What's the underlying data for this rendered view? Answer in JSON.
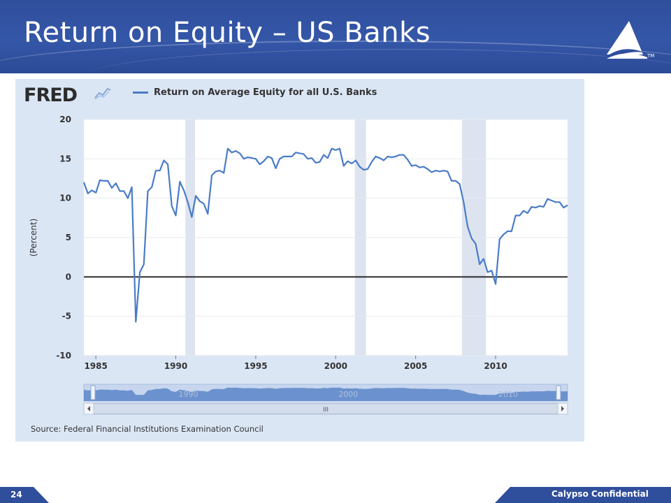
{
  "slide": {
    "title": "Return on Equity – US Banks",
    "page_number": "24",
    "footer_text": "Calypso Confidential",
    "logo_tm": "TM"
  },
  "colors": {
    "header_blue": "#2f4e9c",
    "series_line": "#4a7cc7",
    "recession_band": "#dde4ef",
    "plot_bg": "#ffffff",
    "panel_bg": "#dbe6f5"
  },
  "fred": {
    "logo_text": "FRED",
    "source": "Source: Federal Financial Institutions Examination Council",
    "navigator_labels": [
      "1990",
      "2000",
      "2010"
    ],
    "scroll_handle": "III"
  },
  "chart_data": {
    "type": "line",
    "title": "",
    "xlabel": "",
    "ylabel": "(Percent)",
    "xlim": [
      1984.25,
      2014.5
    ],
    "ylim": [
      -10,
      20
    ],
    "x_ticks": [
      1985,
      1990,
      1995,
      2000,
      2005,
      2010
    ],
    "y_ticks": [
      20,
      15,
      10,
      5,
      0,
      -5,
      -10
    ],
    "grid": true,
    "legend": "top",
    "zero_line": true,
    "recessions": [
      [
        1990.6,
        1991.2
      ],
      [
        2001.2,
        2001.9
      ],
      [
        2007.9,
        2009.4
      ]
    ],
    "series": [
      {
        "name": "Return on Average Equity for all U.S. Banks",
        "x": [
          1984.25,
          1984.5,
          1984.75,
          1985,
          1985.25,
          1985.5,
          1985.75,
          1986,
          1986.25,
          1986.5,
          1986.75,
          1987,
          1987.25,
          1987.5,
          1987.75,
          1988,
          1988.25,
          1988.5,
          1988.75,
          1989,
          1989.25,
          1989.5,
          1989.75,
          1990,
          1990.25,
          1990.5,
          1990.75,
          1991,
          1991.25,
          1991.5,
          1991.75,
          1992,
          1992.25,
          1992.5,
          1992.75,
          1993,
          1993.25,
          1993.5,
          1993.75,
          1994,
          1994.25,
          1994.5,
          1994.75,
          1995,
          1995.25,
          1995.5,
          1995.75,
          1996,
          1996.25,
          1996.5,
          1996.75,
          1997,
          1997.25,
          1997.5,
          1997.75,
          1998,
          1998.25,
          1998.5,
          1998.75,
          1999,
          1999.25,
          1999.5,
          1999.75,
          2000,
          2000.25,
          2000.5,
          2000.75,
          2001,
          2001.25,
          2001.5,
          2001.75,
          2002,
          2002.25,
          2002.5,
          2002.75,
          2003,
          2003.25,
          2003.5,
          2003.75,
          2004,
          2004.25,
          2004.5,
          2004.75,
          2005,
          2005.25,
          2005.5,
          2005.75,
          2006,
          2006.25,
          2006.5,
          2006.75,
          2007,
          2007.25,
          2007.5,
          2007.75,
          2008,
          2008.25,
          2008.5,
          2008.75,
          2009,
          2009.25,
          2009.5,
          2009.75,
          2010,
          2010.25,
          2010.5,
          2010.75,
          2011,
          2011.25,
          2011.5,
          2011.75,
          2012,
          2012.25,
          2012.5,
          2012.75,
          2013,
          2013.25,
          2013.5,
          2013.75,
          2014,
          2014.25,
          2014.5
        ],
        "values": [
          12.0,
          10.6,
          11.0,
          10.7,
          12.3,
          12.2,
          12.2,
          11.3,
          11.9,
          10.9,
          10.9,
          10.0,
          11.4,
          -5.7,
          0.6,
          1.6,
          10.9,
          11.4,
          13.5,
          13.5,
          14.8,
          14.3,
          9.0,
          7.8,
          12.1,
          11.0,
          9.5,
          7.6,
          10.3,
          9.6,
          9.3,
          8.0,
          12.9,
          13.4,
          13.5,
          13.2,
          16.3,
          15.8,
          16.0,
          15.7,
          15.0,
          15.2,
          15.1,
          15.0,
          14.3,
          14.7,
          15.3,
          15.1,
          13.8,
          15.0,
          15.3,
          15.3,
          15.3,
          15.8,
          15.7,
          15.6,
          15.0,
          15.1,
          14.5,
          14.6,
          15.5,
          15.1,
          16.3,
          16.1,
          16.3,
          14.1,
          14.7,
          14.4,
          14.8,
          14.0,
          13.6,
          13.7,
          14.6,
          15.3,
          15.1,
          14.8,
          15.3,
          15.2,
          15.3,
          15.5,
          15.5,
          14.9,
          14.1,
          14.2,
          13.9,
          14.0,
          13.7,
          13.3,
          13.5,
          13.4,
          13.5,
          13.4,
          12.2,
          12.2,
          11.8,
          9.5,
          6.4,
          4.9,
          4.2,
          1.6,
          2.3,
          0.6,
          0.8,
          -0.9,
          4.8,
          5.4,
          5.8,
          5.8,
          7.8,
          7.8,
          8.4,
          8.1,
          8.9,
          8.8,
          9.0,
          8.9,
          9.9,
          9.7,
          9.5,
          9.5,
          8.8,
          9.1
        ]
      }
    ]
  }
}
